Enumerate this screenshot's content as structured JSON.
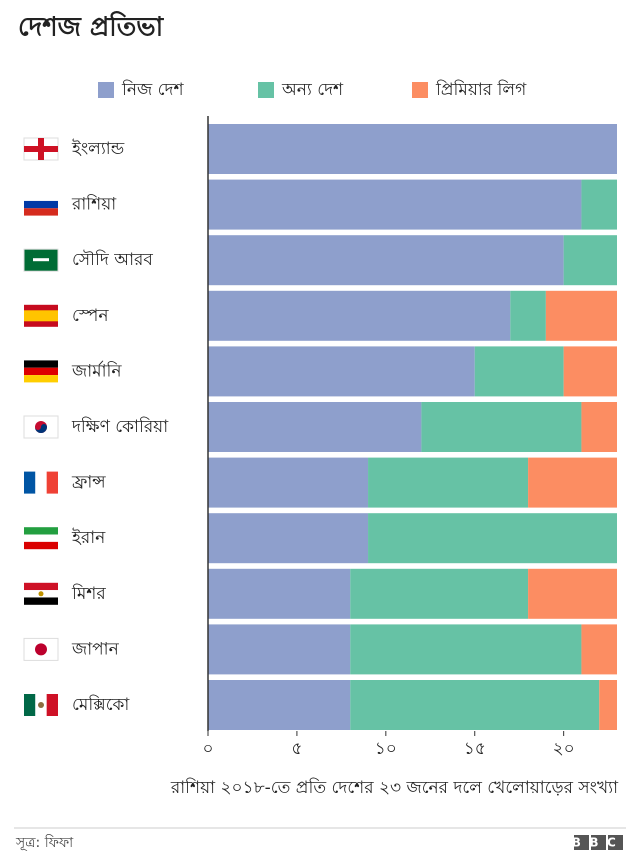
{
  "chart_data": {
    "type": "stacked-bar-horizontal",
    "title": "দেশজ প্রতিভা",
    "categories": [
      "ইংল্যান্ড",
      "রাশিয়া",
      "সৌদি আরব",
      "স্পেন",
      "জার্মানি",
      "দক্ষিণ কোরিয়া",
      "ফ্রান্স",
      "ইরান",
      "মিশর",
      "জাপান",
      "মেক্সিকো"
    ],
    "series": [
      {
        "name": "নিজ দেশ",
        "color": "#8e9fcc",
        "values": [
          23,
          21,
          20,
          17,
          15,
          12,
          9,
          9,
          8,
          8,
          8
        ]
      },
      {
        "name": "অন্য দেশ",
        "color": "#66c2a5",
        "values": [
          0,
          2,
          3,
          2,
          5,
          9,
          9,
          14,
          10,
          13,
          14
        ]
      },
      {
        "name": "প্রিমিয়ার লিগ",
        "color": "#fc8d62",
        "values": [
          0,
          0,
          0,
          4,
          3,
          2,
          5,
          0,
          5,
          2,
          1
        ]
      }
    ],
    "xlim": [
      0,
      23
    ],
    "xticks": [
      {
        "value": 0,
        "label": "০"
      },
      {
        "value": 5,
        "label": "৫"
      },
      {
        "value": 10,
        "label": "১০"
      },
      {
        "value": 15,
        "label": "১৫"
      },
      {
        "value": 20,
        "label": "২০"
      }
    ],
    "xlabel": "রাশিয়া ২০১৮-তে প্রতি দেশের ২৩ জনের দলে খেলোয়াড়ের সংখ্যা",
    "source": "সূত্র: ফিফা",
    "logo": "BBC"
  }
}
